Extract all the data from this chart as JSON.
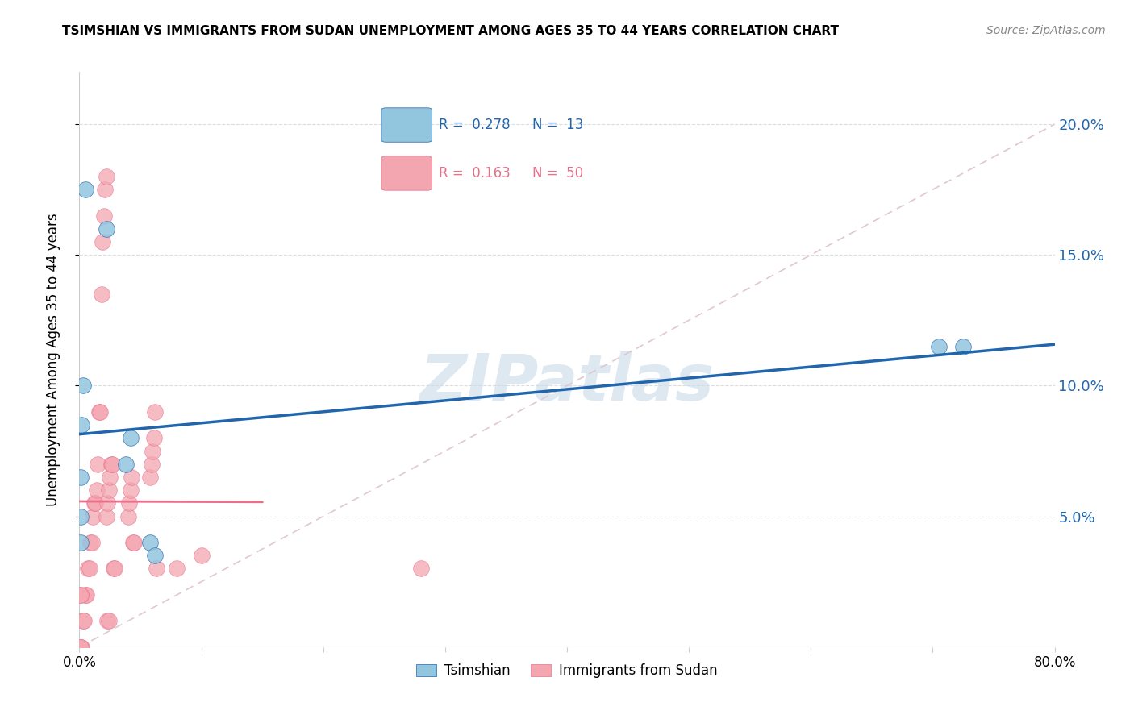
{
  "title": "TSIMSHIAN VS IMMIGRANTS FROM SUDAN UNEMPLOYMENT AMONG AGES 35 TO 44 YEARS CORRELATION CHART",
  "source": "Source: ZipAtlas.com",
  "ylabel": "Unemployment Among Ages 35 to 44 years",
  "xlim": [
    0.0,
    0.8
  ],
  "ylim": [
    0.0,
    0.22
  ],
  "yticks": [
    0.05,
    0.1,
    0.15,
    0.2
  ],
  "ytick_labels": [
    "5.0%",
    "10.0%",
    "15.0%",
    "20.0%"
  ],
  "xticks": [
    0.0,
    0.1,
    0.2,
    0.3,
    0.4,
    0.5,
    0.6,
    0.7,
    0.8
  ],
  "xtick_labels": [
    "0.0%",
    "",
    "",
    "",
    "",
    "",
    "",
    "",
    "80.0%"
  ],
  "legend_r_tsimshian": "0.278",
  "legend_n_tsimshian": "13",
  "legend_r_sudan": "0.163",
  "legend_n_sudan": "50",
  "color_tsimshian": "#92c5de",
  "color_sudan": "#f4a6b0",
  "color_line_tsimshian": "#2166ac",
  "color_line_sudan": "#e8708a",
  "color_diagonal": "#e0c8d0",
  "watermark": "ZIPatlas",
  "tsimshian_x": [
    0.005,
    0.022,
    0.042,
    0.003,
    0.002,
    0.001,
    0.001,
    0.001,
    0.058,
    0.062,
    0.705,
    0.725,
    0.038
  ],
  "tsimshian_y": [
    0.175,
    0.16,
    0.08,
    0.1,
    0.085,
    0.065,
    0.05,
    0.04,
    0.04,
    0.035,
    0.115,
    0.115,
    0.07
  ],
  "sudan_x": [
    0.001,
    0.002,
    0.003,
    0.004,
    0.005,
    0.006,
    0.007,
    0.008,
    0.009,
    0.01,
    0.011,
    0.012,
    0.013,
    0.014,
    0.015,
    0.016,
    0.017,
    0.018,
    0.019,
    0.02,
    0.021,
    0.022,
    0.023,
    0.024,
    0.022,
    0.023,
    0.024,
    0.025,
    0.026,
    0.027,
    0.028,
    0.029,
    0.04,
    0.041,
    0.042,
    0.043,
    0.044,
    0.045,
    0.058,
    0.059,
    0.06,
    0.061,
    0.062,
    0.063,
    0.08,
    0.1,
    0.28,
    0.001,
    0.001,
    0.001
  ],
  "sudan_y": [
    0.0,
    0.0,
    0.01,
    0.01,
    0.02,
    0.02,
    0.03,
    0.03,
    0.04,
    0.04,
    0.05,
    0.055,
    0.055,
    0.06,
    0.07,
    0.09,
    0.09,
    0.135,
    0.155,
    0.165,
    0.175,
    0.18,
    0.01,
    0.01,
    0.05,
    0.055,
    0.06,
    0.065,
    0.07,
    0.07,
    0.03,
    0.03,
    0.05,
    0.055,
    0.06,
    0.065,
    0.04,
    0.04,
    0.065,
    0.07,
    0.075,
    0.08,
    0.09,
    0.03,
    0.03,
    0.035,
    0.03,
    0.02,
    0.02,
    0.0
  ]
}
